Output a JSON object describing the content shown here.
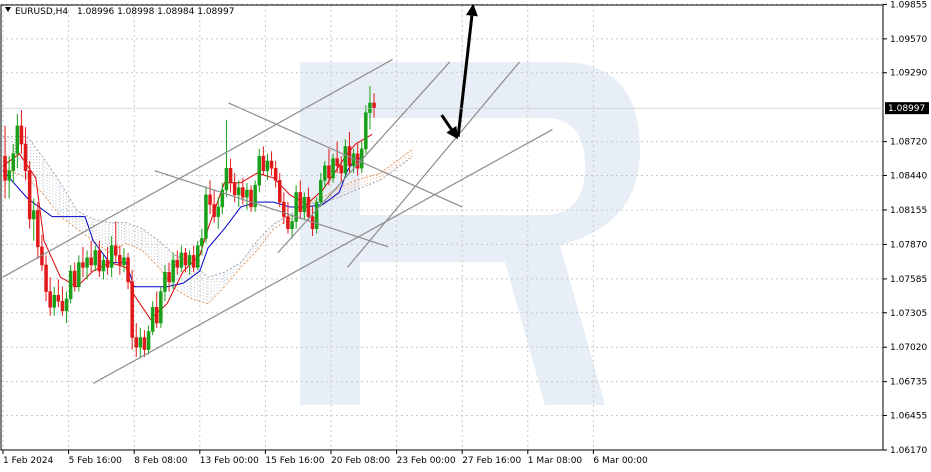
{
  "header": {
    "symbol": "EURUSD,H4",
    "ohlc": "1.08996 1.08998 1.08984 1.08997"
  },
  "chart_data": {
    "type": "candlestick",
    "symbol": "EURUSD",
    "timeframe": "H4",
    "open": 1.08996,
    "high": 1.08998,
    "low": 1.08984,
    "close": 1.08997,
    "current_price_label": "1.08997",
    "current_price": 1.08997,
    "ylim": [
      1.0617,
      1.0985
    ],
    "y_ticks": [
      "1.09855",
      "1.09570",
      "1.09290",
      "1.08720",
      "1.08440",
      "1.08155",
      "1.07870",
      "1.07585",
      "1.07305",
      "1.07020",
      "1.06735",
      "1.06455",
      "1.06170"
    ],
    "x_ticks": [
      "1 Feb 2024",
      "5 Feb 16:00",
      "8 Feb 08:00",
      "13 Feb 00:00",
      "15 Feb 16:00",
      "20 Feb 08:00",
      "23 Feb 00:00",
      "27 Feb 16:00",
      "1 Mar 08:00",
      "6 Mar 00:00"
    ],
    "bars_per_x_tick": 16,
    "grid": true,
    "candles": [
      [
        1.086,
        1.0885,
        1.0825,
        1.084
      ],
      [
        1.084,
        1.086,
        1.0825,
        1.0848
      ],
      [
        1.0848,
        1.087,
        1.0838,
        1.0862
      ],
      [
        1.0862,
        1.0895,
        1.085,
        1.0885
      ],
      [
        1.0885,
        1.0898,
        1.0862,
        1.087
      ],
      [
        1.087,
        1.0884,
        1.084,
        1.0848
      ],
      [
        1.0848,
        1.0856,
        1.08,
        1.0808
      ],
      [
        1.0808,
        1.0825,
        1.079,
        1.0815
      ],
      [
        1.0815,
        1.0822,
        1.0775,
        1.0785
      ],
      [
        1.0785,
        1.0795,
        1.0765,
        1.077
      ],
      [
        1.077,
        1.0778,
        1.074,
        1.0748
      ],
      [
        1.0748,
        1.076,
        1.0728,
        1.0735
      ],
      [
        1.0735,
        1.0752,
        1.0728,
        1.0745
      ],
      [
        1.0745,
        1.0758,
        1.0735,
        1.074
      ],
      [
        1.074,
        1.0752,
        1.0728,
        1.0732
      ],
      [
        1.0732,
        1.0748,
        1.0722,
        1.0742
      ],
      [
        1.0742,
        1.077,
        1.0738,
        1.0765
      ],
      [
        1.0765,
        1.0772,
        1.0748,
        1.0752
      ],
      [
        1.0752,
        1.0778,
        1.0748,
        1.0772
      ],
      [
        1.0772,
        1.0785,
        1.076,
        1.0768
      ],
      [
        1.0768,
        1.0782,
        1.0758,
        1.0776
      ],
      [
        1.0776,
        1.079,
        1.0764,
        1.077
      ],
      [
        1.077,
        1.0786,
        1.0765,
        1.0782
      ],
      [
        1.0782,
        1.079,
        1.076,
        1.0765
      ],
      [
        1.0765,
        1.0778,
        1.0758,
        1.0774
      ],
      [
        1.0774,
        1.0785,
        1.0762,
        1.0768
      ],
      [
        1.0768,
        1.0794,
        1.076,
        1.0786
      ],
      [
        1.0786,
        1.0806,
        1.0772,
        1.0778
      ],
      [
        1.0778,
        1.0786,
        1.0762,
        1.077
      ],
      [
        1.077,
        1.0784,
        1.0764,
        1.0776
      ],
      [
        1.0776,
        1.078,
        1.075,
        1.0756
      ],
      [
        1.0756,
        1.0766,
        1.07,
        1.071
      ],
      [
        1.071,
        1.0722,
        1.0694,
        1.0702
      ],
      [
        1.0702,
        1.0718,
        1.0694,
        1.071
      ],
      [
        1.071,
        1.0716,
        1.0694,
        1.07
      ],
      [
        1.07,
        1.072,
        1.0696,
        1.0715
      ],
      [
        1.0715,
        1.074,
        1.0712,
        1.0735
      ],
      [
        1.0735,
        1.0748,
        1.0718,
        1.0722
      ],
      [
        1.0722,
        1.0752,
        1.0718,
        1.0748
      ],
      [
        1.0748,
        1.077,
        1.074,
        1.0764
      ],
      [
        1.0764,
        1.0772,
        1.0748,
        1.0756
      ],
      [
        1.0756,
        1.078,
        1.075,
        1.0774
      ],
      [
        1.0774,
        1.0782,
        1.0762,
        1.0768
      ],
      [
        1.0768,
        1.0786,
        1.0764,
        1.078
      ],
      [
        1.078,
        1.0784,
        1.0764,
        1.077
      ],
      [
        1.077,
        1.0782,
        1.0762,
        1.0778
      ],
      [
        1.0778,
        1.0786,
        1.0764,
        1.0768
      ],
      [
        1.0768,
        1.079,
        1.0766,
        1.0786
      ],
      [
        1.0786,
        1.08,
        1.0778,
        1.0792
      ],
      [
        1.0792,
        1.0835,
        1.0788,
        1.0828
      ],
      [
        1.0828,
        1.084,
        1.0812,
        1.082
      ],
      [
        1.082,
        1.0832,
        1.0805,
        1.081
      ],
      [
        1.081,
        1.0826,
        1.08,
        1.0818
      ],
      [
        1.0818,
        1.0838,
        1.0812,
        1.0832
      ],
      [
        1.0832,
        1.089,
        1.0826,
        1.085
      ],
      [
        1.085,
        1.0858,
        1.083,
        1.0838
      ],
      [
        1.0838,
        1.0846,
        1.0822,
        1.0828
      ],
      [
        1.0828,
        1.084,
        1.0818,
        1.0834
      ],
      [
        1.0834,
        1.0842,
        1.082,
        1.0826
      ],
      [
        1.0826,
        1.0838,
        1.0816,
        1.0832
      ],
      [
        1.0832,
        1.0836,
        1.0814,
        1.0818
      ],
      [
        1.0818,
        1.084,
        1.0814,
        1.0836
      ],
      [
        1.0836,
        1.0866,
        1.083,
        1.086
      ],
      [
        1.086,
        1.0868,
        1.0844,
        1.0848
      ],
      [
        1.0848,
        1.0862,
        1.084,
        1.0856
      ],
      [
        1.0856,
        1.0864,
        1.0844,
        1.085
      ],
      [
        1.085,
        1.0856,
        1.0834,
        1.084
      ],
      [
        1.084,
        1.0846,
        1.0818,
        1.0822
      ],
      [
        1.0822,
        1.083,
        1.0804,
        1.081
      ],
      [
        1.081,
        1.0822,
        1.0796,
        1.08
      ],
      [
        1.08,
        1.0812,
        1.0792,
        1.0806
      ],
      [
        1.0806,
        1.0836,
        1.08,
        1.083
      ],
      [
        1.083,
        1.084,
        1.0808,
        1.0814
      ],
      [
        1.0814,
        1.083,
        1.0808,
        1.0826
      ],
      [
        1.0826,
        1.0834,
        1.0806,
        1.081
      ],
      [
        1.081,
        1.0818,
        1.0794,
        1.08
      ],
      [
        1.08,
        1.0826,
        1.0796,
        1.0822
      ],
      [
        1.0822,
        1.0846,
        1.0818,
        1.084
      ],
      [
        1.084,
        1.0856,
        1.0834,
        1.0852
      ],
      [
        1.0852,
        1.0866,
        1.0836,
        1.0842
      ],
      [
        1.0842,
        1.0862,
        1.0838,
        1.0858
      ],
      [
        1.0858,
        1.0872,
        1.0846,
        1.0852
      ],
      [
        1.0852,
        1.086,
        1.0838,
        1.0846
      ],
      [
        1.0846,
        1.0874,
        1.0842,
        1.0868
      ],
      [
        1.0868,
        1.088,
        1.0846,
        1.0852
      ],
      [
        1.0852,
        1.0866,
        1.0846,
        1.0862
      ],
      [
        1.0862,
        1.087,
        1.0844,
        1.085
      ],
      [
        1.085,
        1.0872,
        1.0846,
        1.0866
      ],
      [
        1.0866,
        1.0902,
        1.0862,
        1.0896
      ],
      [
        1.0896,
        1.0918,
        1.0882,
        1.0904
      ],
      [
        1.0904,
        1.0912,
        1.0892,
        1.09
      ]
    ],
    "tenkan_sen": [
      [
        0,
        1.0852
      ],
      [
        4,
        1.0862
      ],
      [
        8,
        1.0842
      ],
      [
        10,
        1.079
      ],
      [
        14,
        1.076
      ],
      [
        18,
        1.0752
      ],
      [
        22,
        1.0765
      ],
      [
        26,
        1.0772
      ],
      [
        30,
        1.0768
      ],
      [
        32,
        1.0745
      ],
      [
        36,
        1.0725
      ],
      [
        40,
        1.0738
      ],
      [
        44,
        1.0765
      ],
      [
        48,
        1.0778
      ],
      [
        50,
        1.08
      ],
      [
        54,
        1.0838
      ],
      [
        58,
        1.0838
      ],
      [
        62,
        1.0846
      ],
      [
        66,
        1.0842
      ],
      [
        70,
        1.0828
      ],
      [
        74,
        1.082
      ],
      [
        78,
        1.0832
      ],
      [
        82,
        1.0852
      ],
      [
        84,
        1.0862
      ],
      [
        86,
        1.087
      ],
      [
        90,
        1.0878
      ]
    ],
    "kijun_sen": [
      [
        0,
        1.0848
      ],
      [
        6,
        1.0825
      ],
      [
        12,
        1.081
      ],
      [
        20,
        1.081
      ],
      [
        22,
        1.079
      ],
      [
        26,
        1.0772
      ],
      [
        30,
        1.0772
      ],
      [
        32,
        1.0752
      ],
      [
        36,
        1.0752
      ],
      [
        40,
        1.0752
      ],
      [
        44,
        1.0755
      ],
      [
        48,
        1.0765
      ],
      [
        50,
        1.0784
      ],
      [
        54,
        1.08
      ],
      [
        58,
        1.0818
      ],
      [
        62,
        1.0822
      ],
      [
        66,
        1.0822
      ],
      [
        70,
        1.0818
      ],
      [
        74,
        1.0818
      ],
      [
        78,
        1.082
      ],
      [
        82,
        1.083
      ],
      [
        84,
        1.0848
      ],
      [
        86,
        1.0858
      ],
      [
        88,
        1.0858
      ]
    ],
    "senkou_a": [
      [
        0,
        1.085
      ],
      [
        6,
        1.0842
      ],
      [
        10,
        1.0828
      ],
      [
        14,
        1.081
      ],
      [
        18,
        1.08
      ],
      [
        22,
        1.079
      ],
      [
        26,
        1.078
      ],
      [
        30,
        1.0788
      ],
      [
        34,
        1.0782
      ],
      [
        38,
        1.0768
      ],
      [
        42,
        1.075
      ],
      [
        46,
        1.0742
      ],
      [
        50,
        1.0738
      ],
      [
        54,
        1.0752
      ],
      [
        58,
        1.0768
      ],
      [
        62,
        1.0782
      ],
      [
        66,
        1.08
      ],
      [
        70,
        1.0808
      ],
      [
        74,
        1.082
      ],
      [
        78,
        1.0826
      ],
      [
        82,
        1.0834
      ],
      [
        86,
        1.084
      ],
      [
        92,
        1.0846
      ],
      [
        96,
        1.0856
      ],
      [
        100,
        1.0866
      ]
    ],
    "senkou_b": [
      [
        0,
        1.0876
      ],
      [
        6,
        1.0876
      ],
      [
        10,
        1.0858
      ],
      [
        14,
        1.0838
      ],
      [
        18,
        1.0815
      ],
      [
        22,
        1.0808
      ],
      [
        26,
        1.0805
      ],
      [
        30,
        1.0805
      ],
      [
        34,
        1.08
      ],
      [
        38,
        1.079
      ],
      [
        42,
        1.0778
      ],
      [
        46,
        1.0772
      ],
      [
        50,
        1.076
      ],
      [
        54,
        1.0764
      ],
      [
        58,
        1.0772
      ],
      [
        62,
        1.079
      ],
      [
        66,
        1.0804
      ],
      [
        70,
        1.0812
      ],
      [
        74,
        1.082
      ],
      [
        78,
        1.0822
      ],
      [
        82,
        1.0826
      ],
      [
        86,
        1.0832
      ],
      [
        92,
        1.084
      ],
      [
        96,
        1.085
      ],
      [
        100,
        1.086
      ]
    ],
    "trend_lines": [
      {
        "from": [
          0,
          1.076
        ],
        "to": [
          95,
          1.094
        ]
      },
      {
        "from": [
          22,
          1.0672
        ],
        "to": [
          134,
          1.0882
        ]
      },
      {
        "from": [
          37,
          1.0848
        ],
        "to": [
          94,
          1.0785
        ]
      },
      {
        "from": [
          55,
          1.0904
        ],
        "to": [
          112,
          1.0818
        ]
      },
      {
        "from": [
          67,
          1.078
        ],
        "to": [
          109,
          1.0938
        ]
      },
      {
        "from": [
          84,
          1.0768
        ],
        "to": [
          126,
          1.0938
        ]
      }
    ],
    "forecast_arrows": [
      {
        "from": [
          107,
          1.0894
        ],
        "to": [
          111,
          1.0874
        ]
      },
      {
        "from": [
          111,
          1.0876
        ],
        "to": [
          114.7,
          1.0986
        ]
      }
    ]
  }
}
